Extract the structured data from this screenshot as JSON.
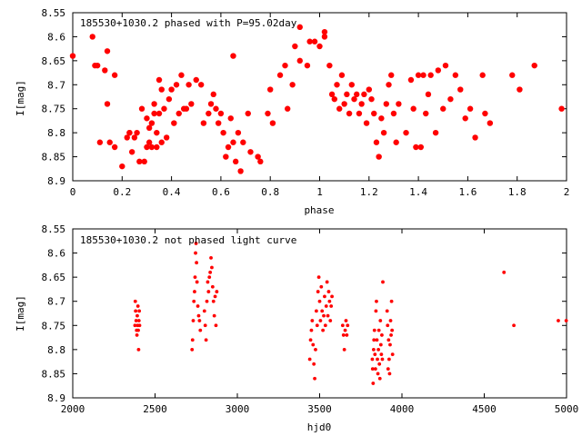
{
  "chart_data": [
    {
      "type": "scatter",
      "title": "185530+1030.2 phased with P=95.02day",
      "xlabel": "phase",
      "ylabel": "I[mag]",
      "xlim": [
        0,
        2
      ],
      "ylim": [
        8.55,
        8.9
      ],
      "y_inverted": true,
      "xticks": [
        "0",
        "0.2",
        "0.4",
        "0.6",
        "0.8",
        "1",
        "1.2",
        "1.4",
        "1.6",
        "1.8",
        "2"
      ],
      "yticks": [
        "8.55",
        "8.6",
        "8.65",
        "8.7",
        "8.75",
        "8.8",
        "8.85",
        "8.9"
      ],
      "marker_color": "#ff0000",
      "points": [
        [
          0.0,
          8.64
        ],
        [
          0.08,
          8.6
        ],
        [
          0.09,
          8.66
        ],
        [
          0.1,
          8.66
        ],
        [
          0.11,
          8.82
        ],
        [
          0.13,
          8.67
        ],
        [
          0.14,
          8.74
        ],
        [
          0.14,
          8.63
        ],
        [
          0.15,
          8.82
        ],
        [
          0.17,
          8.83
        ],
        [
          0.17,
          8.68
        ],
        [
          0.2,
          8.87
        ],
        [
          0.22,
          8.81
        ],
        [
          0.23,
          8.8
        ],
        [
          0.23,
          8.8
        ],
        [
          0.24,
          8.84
        ],
        [
          0.25,
          8.81
        ],
        [
          0.26,
          8.8
        ],
        [
          0.27,
          8.86
        ],
        [
          0.28,
          8.75
        ],
        [
          0.29,
          8.86
        ],
        [
          0.3,
          8.77
        ],
        [
          0.3,
          8.83
        ],
        [
          0.31,
          8.82
        ],
        [
          0.31,
          8.79
        ],
        [
          0.32,
          8.78
        ],
        [
          0.32,
          8.83
        ],
        [
          0.33,
          8.74
        ],
        [
          0.33,
          8.76
        ],
        [
          0.34,
          8.8
        ],
        [
          0.34,
          8.83
        ],
        [
          0.35,
          8.69
        ],
        [
          0.35,
          8.76
        ],
        [
          0.36,
          8.82
        ],
        [
          0.36,
          8.71
        ],
        [
          0.37,
          8.75
        ],
        [
          0.38,
          8.81
        ],
        [
          0.39,
          8.73
        ],
        [
          0.4,
          8.71
        ],
        [
          0.41,
          8.78
        ],
        [
          0.42,
          8.7
        ],
        [
          0.43,
          8.76
        ],
        [
          0.44,
          8.68
        ],
        [
          0.45,
          8.75
        ],
        [
          0.46,
          8.75
        ],
        [
          0.47,
          8.7
        ],
        [
          0.48,
          8.74
        ],
        [
          0.5,
          8.69
        ],
        [
          0.52,
          8.7
        ],
        [
          0.53,
          8.78
        ],
        [
          0.55,
          8.76
        ],
        [
          0.56,
          8.74
        ],
        [
          0.57,
          8.72
        ],
        [
          0.58,
          8.75
        ],
        [
          0.59,
          8.78
        ],
        [
          0.6,
          8.76
        ],
        [
          0.61,
          8.8
        ],
        [
          0.62,
          8.85
        ],
        [
          0.63,
          8.83
        ],
        [
          0.64,
          8.77
        ],
        [
          0.65,
          8.82
        ],
        [
          0.65,
          8.64
        ],
        [
          0.66,
          8.86
        ],
        [
          0.67,
          8.8
        ],
        [
          0.68,
          8.88
        ],
        [
          0.69,
          8.82
        ],
        [
          0.71,
          8.76
        ],
        [
          0.72,
          8.84
        ],
        [
          0.75,
          8.85
        ],
        [
          0.76,
          8.86
        ],
        [
          0.79,
          8.76
        ],
        [
          0.8,
          8.71
        ],
        [
          0.81,
          8.78
        ],
        [
          0.84,
          8.68
        ],
        [
          0.86,
          8.66
        ],
        [
          0.87,
          8.75
        ],
        [
          0.89,
          8.7
        ],
        [
          0.9,
          8.62
        ],
        [
          0.92,
          8.58
        ],
        [
          0.92,
          8.65
        ],
        [
          0.95,
          8.66
        ],
        [
          0.96,
          8.61
        ],
        [
          0.98,
          8.61
        ],
        [
          1.0,
          8.62
        ],
        [
          1.02,
          8.59
        ],
        [
          1.02,
          8.6
        ],
        [
          1.04,
          8.66
        ],
        [
          1.05,
          8.72
        ],
        [
          1.06,
          8.73
        ],
        [
          1.07,
          8.7
        ],
        [
          1.08,
          8.75
        ],
        [
          1.09,
          8.68
        ],
        [
          1.1,
          8.74
        ],
        [
          1.11,
          8.72
        ],
        [
          1.12,
          8.76
        ],
        [
          1.13,
          8.7
        ],
        [
          1.14,
          8.73
        ],
        [
          1.15,
          8.72
        ],
        [
          1.16,
          8.76
        ],
        [
          1.17,
          8.74
        ],
        [
          1.18,
          8.72
        ],
        [
          1.19,
          8.78
        ],
        [
          1.2,
          8.71
        ],
        [
          1.21,
          8.73
        ],
        [
          1.22,
          8.76
        ],
        [
          1.23,
          8.82
        ],
        [
          1.24,
          8.85
        ],
        [
          1.25,
          8.77
        ],
        [
          1.26,
          8.8
        ],
        [
          1.27,
          8.74
        ],
        [
          1.28,
          8.7
        ],
        [
          1.29,
          8.68
        ],
        [
          1.3,
          8.76
        ],
        [
          1.31,
          8.82
        ],
        [
          1.32,
          8.74
        ],
        [
          1.35,
          8.8
        ],
        [
          1.37,
          8.69
        ],
        [
          1.38,
          8.75
        ],
        [
          1.39,
          8.83
        ],
        [
          1.4,
          8.68
        ],
        [
          1.41,
          8.83
        ],
        [
          1.42,
          8.68
        ],
        [
          1.43,
          8.76
        ],
        [
          1.44,
          8.72
        ],
        [
          1.45,
          8.68
        ],
        [
          1.47,
          8.8
        ],
        [
          1.48,
          8.67
        ],
        [
          1.5,
          8.75
        ],
        [
          1.51,
          8.66
        ],
        [
          1.53,
          8.73
        ],
        [
          1.55,
          8.68
        ],
        [
          1.57,
          8.71
        ],
        [
          1.59,
          8.77
        ],
        [
          1.61,
          8.75
        ],
        [
          1.63,
          8.81
        ],
        [
          1.66,
          8.68
        ],
        [
          1.67,
          8.76
        ],
        [
          1.69,
          8.78
        ],
        [
          1.78,
          8.68
        ],
        [
          1.81,
          8.71
        ],
        [
          1.87,
          8.66
        ],
        [
          1.98,
          8.75
        ]
      ]
    },
    {
      "type": "scatter",
      "title": "185530+1030.2 not phased light curve",
      "xlabel": "hjd0",
      "ylabel": "I[mag]",
      "xlim": [
        2000,
        5000
      ],
      "ylim": [
        8.55,
        8.9
      ],
      "y_inverted": true,
      "xticks": [
        "2000",
        "2500",
        "3000",
        "3500",
        "4000",
        "4500",
        "5000"
      ],
      "yticks": [
        "8.55",
        "8.6",
        "8.65",
        "8.7",
        "8.75",
        "8.8",
        "8.85",
        "8.9"
      ],
      "marker_color": "#ff0000",
      "points": [
        [
          2378,
          8.75
        ],
        [
          2380,
          8.7
        ],
        [
          2382,
          8.72
        ],
        [
          2385,
          8.74
        ],
        [
          2388,
          8.76
        ],
        [
          2390,
          8.77
        ],
        [
          2392,
          8.73
        ],
        [
          2394,
          8.75
        ],
        [
          2396,
          8.71
        ],
        [
          2398,
          8.76
        ],
        [
          2400,
          8.8
        ],
        [
          2402,
          8.74
        ],
        [
          2404,
          8.72
        ],
        [
          2406,
          8.75
        ],
        [
          2725,
          8.8
        ],
        [
          2728,
          8.78
        ],
        [
          2732,
          8.74
        ],
        [
          2736,
          8.7
        ],
        [
          2740,
          8.68
        ],
        [
          2743,
          8.65
        ],
        [
          2746,
          8.6
        ],
        [
          2749,
          8.58
        ],
        [
          2752,
          8.62
        ],
        [
          2755,
          8.66
        ],
        [
          2760,
          8.71
        ],
        [
          2765,
          8.73
        ],
        [
          2770,
          8.74
        ],
        [
          2775,
          8.76
        ],
        [
          2800,
          8.72
        ],
        [
          2805,
          8.75
        ],
        [
          2810,
          8.78
        ],
        [
          2815,
          8.7
        ],
        [
          2820,
          8.66
        ],
        [
          2825,
          8.68
        ],
        [
          2830,
          8.65
        ],
        [
          2835,
          8.64
        ],
        [
          2840,
          8.61
        ],
        [
          2845,
          8.63
        ],
        [
          2850,
          8.67
        ],
        [
          2855,
          8.7
        ],
        [
          2860,
          8.73
        ],
        [
          2865,
          8.69
        ],
        [
          2870,
          8.75
        ],
        [
          2875,
          8.68
        ],
        [
          3440,
          8.82
        ],
        [
          3445,
          8.78
        ],
        [
          3450,
          8.76
        ],
        [
          3455,
          8.74
        ],
        [
          3460,
          8.79
        ],
        [
          3465,
          8.83
        ],
        [
          3470,
          8.86
        ],
        [
          3475,
          8.8
        ],
        [
          3480,
          8.72
        ],
        [
          3485,
          8.75
        ],
        [
          3490,
          8.68
        ],
        [
          3495,
          8.65
        ],
        [
          3500,
          8.7
        ],
        [
          3505,
          8.74
        ],
        [
          3510,
          8.67
        ],
        [
          3515,
          8.72
        ],
        [
          3520,
          8.76
        ],
        [
          3525,
          8.73
        ],
        [
          3530,
          8.69
        ],
        [
          3535,
          8.75
        ],
        [
          3540,
          8.71
        ],
        [
          3545,
          8.66
        ],
        [
          3550,
          8.73
        ],
        [
          3555,
          8.68
        ],
        [
          3560,
          8.7
        ],
        [
          3565,
          8.74
        ],
        [
          3570,
          8.71
        ],
        [
          3575,
          8.69
        ],
        [
          3640,
          8.75
        ],
        [
          3645,
          8.77
        ],
        [
          3650,
          8.8
        ],
        [
          3655,
          8.76
        ],
        [
          3660,
          8.74
        ],
        [
          3665,
          8.77
        ],
        [
          3670,
          8.75
        ],
        [
          3820,
          8.82
        ],
        [
          3822,
          8.84
        ],
        [
          3825,
          8.87
        ],
        [
          3828,
          8.8
        ],
        [
          3830,
          8.78
        ],
        [
          3833,
          8.76
        ],
        [
          3836,
          8.81
        ],
        [
          3839,
          8.84
        ],
        [
          3842,
          8.72
        ],
        [
          3845,
          8.7
        ],
        [
          3848,
          8.78
        ],
        [
          3851,
          8.82
        ],
        [
          3854,
          8.85
        ],
        [
          3857,
          8.8
        ],
        [
          3860,
          8.76
        ],
        [
          3863,
          8.83
        ],
        [
          3866,
          8.86
        ],
        [
          3869,
          8.74
        ],
        [
          3872,
          8.79
        ],
        [
          3875,
          8.81
        ],
        [
          3878,
          8.77
        ],
        [
          3881,
          8.82
        ],
        [
          3884,
          8.66
        ],
        [
          3910,
          8.72
        ],
        [
          3913,
          8.75
        ],
        [
          3916,
          8.84
        ],
        [
          3919,
          8.78
        ],
        [
          3922,
          8.82
        ],
        [
          3925,
          8.85
        ],
        [
          3928,
          8.79
        ],
        [
          3931,
          8.74
        ],
        [
          3934,
          8.77
        ],
        [
          3937,
          8.7
        ],
        [
          3940,
          8.76
        ],
        [
          3943,
          8.81
        ],
        [
          4620,
          8.64
        ],
        [
          4680,
          8.75
        ],
        [
          4950,
          8.74
        ],
        [
          4998,
          8.74
        ]
      ]
    }
  ]
}
